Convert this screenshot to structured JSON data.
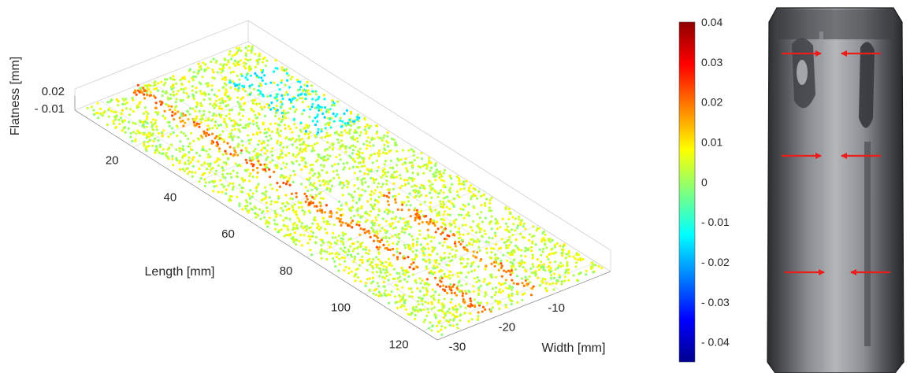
{
  "chart_data": {
    "type": "scatter",
    "title": "",
    "xlabel": "Length [mm]",
    "ylabel": "Width [mm]",
    "zlabel": "Flatness [mm]",
    "x_range": [
      0,
      125
    ],
    "y_range": [
      -35,
      0
    ],
    "z_ticks": [
      "0.02",
      "- 0.01"
    ],
    "x_ticks": [
      20,
      40,
      60,
      80,
      100,
      120
    ],
    "y_ticks": [
      -30,
      -20,
      -10
    ],
    "colorbar": {
      "range": [
        -0.045,
        0.04
      ],
      "colormap": "jet",
      "ticks": [
        "0.04",
        "0.03",
        "0.02",
        "0.01",
        "0",
        "- 0.01",
        "- 0.02",
        "- 0.03",
        "- 0.04"
      ]
    },
    "features": [
      {
        "label": "",
        "description": "elevated ridge",
        "length_range": [
          0,
          125
        ],
        "width_center": -24,
        "flatness": 0.02
      },
      {
        "label": "",
        "description": "elevated ridge",
        "length_range": [
          70,
          125
        ],
        "width_center": -14,
        "flatness": 0.02
      },
      {
        "label": "",
        "description": "depressed region",
        "length_range": [
          10,
          40
        ],
        "width_center": -5,
        "flatness": -0.015
      }
    ],
    "grid": true,
    "legend": "none"
  },
  "photo": {
    "arrow_rows": 3,
    "arrow_color": "#ee1b1b"
  }
}
